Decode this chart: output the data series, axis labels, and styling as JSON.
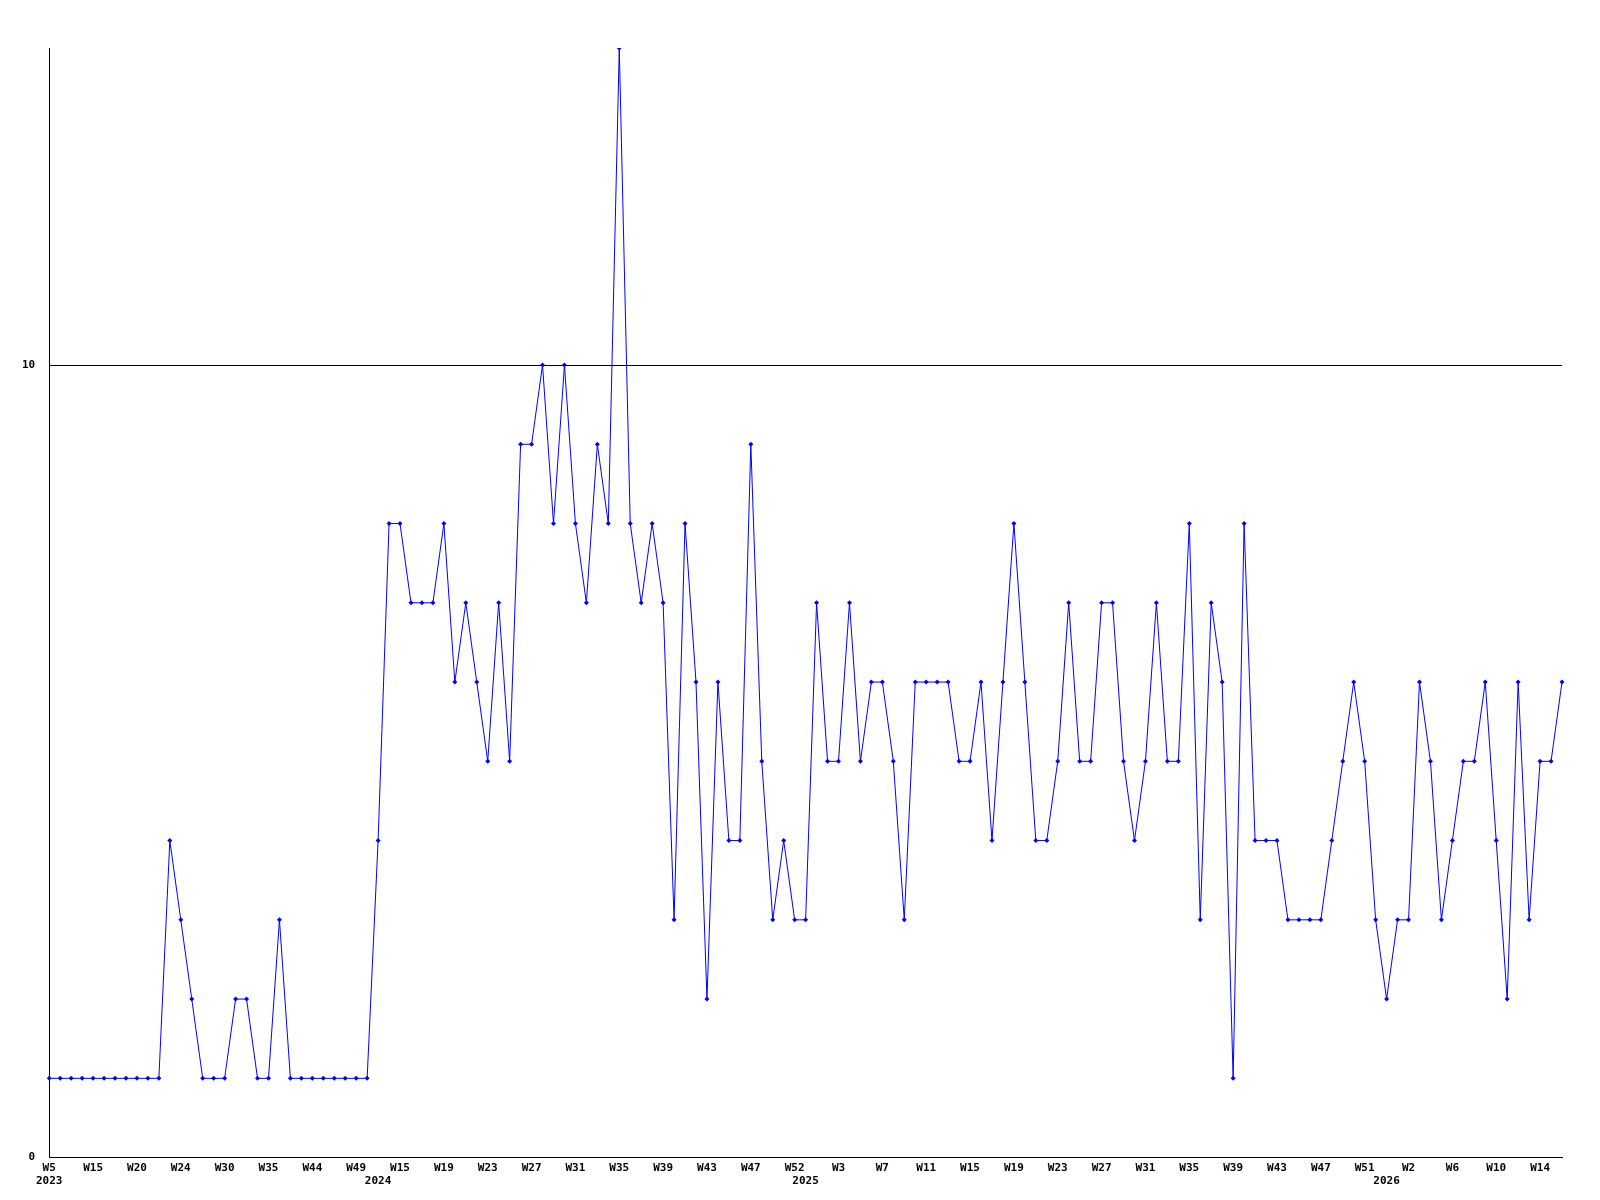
{
  "chart_data": {
    "type": "line",
    "categories": [
      "W5\n2023",
      null,
      null,
      null,
      "W15",
      null,
      null,
      null,
      "W20",
      null,
      null,
      null,
      "W24",
      null,
      null,
      null,
      "W30",
      null,
      null,
      null,
      "W35",
      null,
      null,
      null,
      "W44",
      null,
      null,
      null,
      "W49",
      null,
      "\n2024",
      null,
      "W15",
      null,
      null,
      null,
      "W19",
      null,
      null,
      null,
      "W23",
      null,
      null,
      null,
      "W27",
      null,
      null,
      null,
      "W31",
      null,
      null,
      null,
      "W35",
      null,
      null,
      null,
      "W39",
      null,
      null,
      null,
      "W43",
      null,
      null,
      null,
      "W47",
      null,
      null,
      null,
      "W52",
      "\n2025",
      null,
      null,
      "W3",
      null,
      null,
      null,
      "W7",
      null,
      null,
      null,
      "W11",
      null,
      null,
      null,
      "W15",
      null,
      null,
      null,
      "W19",
      null,
      null,
      null,
      "W23",
      null,
      null,
      null,
      "W27",
      null,
      null,
      null,
      "W31",
      null,
      null,
      null,
      "W35",
      null,
      null,
      null,
      "W39",
      null,
      null,
      null,
      "W43",
      null,
      null,
      null,
      "W47",
      null,
      null,
      null,
      "W51",
      null,
      "\n2026",
      null,
      "W2",
      null,
      null,
      null,
      "W6",
      null,
      null,
      null,
      "W10",
      null,
      null,
      null,
      "W14",
      null,
      null
    ],
    "series": [
      {
        "color": "#0000ff",
        "values": [
          1,
          1,
          1,
          1,
          1,
          1,
          1,
          1,
          1,
          1,
          1,
          4,
          3,
          2,
          1,
          1,
          1,
          2,
          2,
          1,
          1,
          3,
          1,
          1,
          1,
          1,
          1,
          1,
          1,
          1,
          4,
          8,
          8,
          7,
          7,
          7,
          8,
          6,
          7,
          6,
          5,
          7,
          5,
          9,
          9,
          10,
          8,
          10,
          8,
          7,
          9,
          8,
          14,
          8,
          7,
          8,
          7,
          3,
          8,
          6,
          2,
          6,
          4,
          4,
          9,
          5,
          3,
          4,
          3,
          3,
          7,
          5,
          5,
          7,
          5,
          6,
          6,
          5,
          3,
          6,
          6,
          6,
          6,
          5,
          5,
          6,
          4,
          6,
          8,
          6,
          4,
          4,
          5,
          7,
          5,
          5,
          7,
          7,
          5,
          4,
          5,
          7,
          5,
          5,
          8,
          3,
          7,
          6,
          1,
          8,
          4,
          4,
          4,
          3,
          3,
          3,
          3,
          4,
          5,
          6,
          5,
          3,
          2,
          3,
          3,
          6,
          5,
          3,
          4,
          5,
          5,
          6,
          4,
          2,
          6,
          3,
          5,
          5,
          6
        ]
      }
    ],
    "ylim": [
      0,
      14
    ],
    "yticks": [
      0,
      10
    ],
    "grid": "y",
    "legend": false,
    "marker": "diamond",
    "line_style": "solid"
  }
}
